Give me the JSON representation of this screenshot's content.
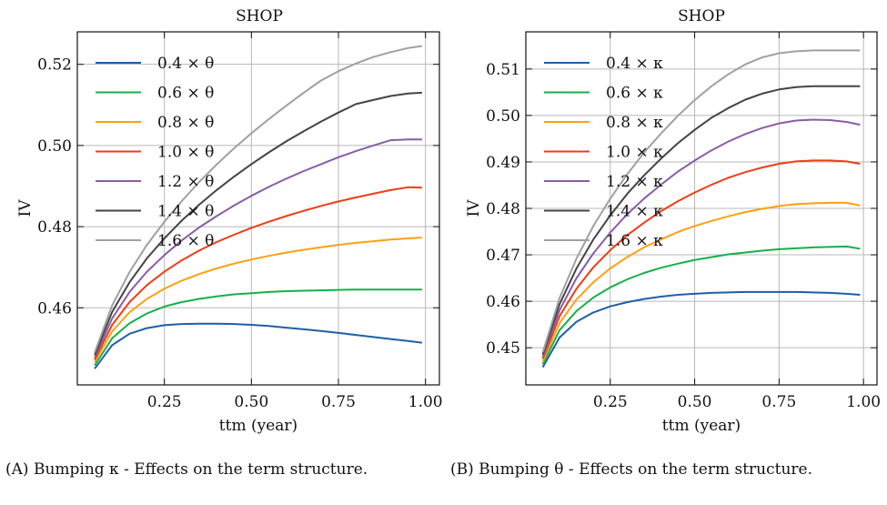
{
  "chart_data": [
    {
      "type": "line",
      "title": "SHOP",
      "xlabel": "ttm (year)",
      "ylabel": "IV",
      "xlim": [
        0.0,
        1.04
      ],
      "ylim": [
        0.441,
        0.528
      ],
      "xticks": [
        0.25,
        0.5,
        0.75,
        1.0
      ],
      "xtick_labels": [
        "0.25",
        "0.50",
        "0.75",
        "1.00"
      ],
      "yticks": [
        0.46,
        0.48,
        0.5,
        0.52
      ],
      "ytick_labels": [
        "0.46",
        "0.48",
        "0.50",
        "0.52"
      ],
      "grid": true,
      "legend": "top-left",
      "x": [
        0.05,
        0.1,
        0.15,
        0.2,
        0.25,
        0.3,
        0.35,
        0.4,
        0.45,
        0.5,
        0.55,
        0.6,
        0.65,
        0.7,
        0.75,
        0.8,
        0.85,
        0.9,
        0.95,
        0.99
      ],
      "series": [
        {
          "name": "0.4 × θ",
          "color": "#1f5fa6",
          "values": [
            0.445,
            0.4508,
            0.4536,
            0.455,
            0.4557,
            0.456,
            0.4561,
            0.4561,
            0.456,
            0.4558,
            0.4555,
            0.4551,
            0.4547,
            0.4543,
            0.4538,
            0.4533,
            0.4528,
            0.4523,
            0.4518,
            0.4514
          ]
        },
        {
          "name": "0.6 × θ",
          "color": "#16b04a",
          "values": [
            0.4458,
            0.4525,
            0.4562,
            0.4586,
            0.4603,
            0.4614,
            0.4622,
            0.4628,
            0.4633,
            0.4636,
            0.4639,
            0.4641,
            0.4642,
            0.4643,
            0.4644,
            0.4645,
            0.4645,
            0.4645,
            0.4645,
            0.4645
          ]
        },
        {
          "name": "0.8 × θ",
          "color": "#ffa010",
          "values": [
            0.4466,
            0.4542,
            0.4589,
            0.4622,
            0.4647,
            0.4667,
            0.4683,
            0.4697,
            0.4709,
            0.4719,
            0.4728,
            0.4736,
            0.4743,
            0.4749,
            0.4755,
            0.476,
            0.4764,
            0.4768,
            0.4771,
            0.4773
          ]
        },
        {
          "name": "1.0 × θ",
          "color": "#f03c14",
          "values": [
            0.4472,
            0.4558,
            0.4614,
            0.4656,
            0.4689,
            0.4717,
            0.4741,
            0.4762,
            0.478,
            0.4797,
            0.4812,
            0.4826,
            0.4839,
            0.4851,
            0.4862,
            0.4872,
            0.4881,
            0.489,
            0.4897,
            0.4896
          ]
        },
        {
          "name": "1.2 × θ",
          "color": "#8a5ca8",
          "values": [
            0.4478,
            0.4574,
            0.4639,
            0.4689,
            0.473,
            0.4766,
            0.4798,
            0.4826,
            0.4852,
            0.4876,
            0.4898,
            0.4918,
            0.4937,
            0.4954,
            0.4971,
            0.4986,
            0.5,
            0.5013,
            0.5015,
            0.5015
          ]
        },
        {
          "name": "1.4 × θ",
          "color": "#444444",
          "values": [
            0.4484,
            0.459,
            0.4663,
            0.4722,
            0.4771,
            0.4815,
            0.4854,
            0.489,
            0.4923,
            0.4954,
            0.4983,
            0.501,
            0.5035,
            0.5059,
            0.5081,
            0.5102,
            0.5112,
            0.5122,
            0.5128,
            0.513
          ]
        },
        {
          "name": "1.6 × θ",
          "color": "#a0a0a0",
          "values": [
            0.449,
            0.4606,
            0.4688,
            0.4755,
            0.4812,
            0.4863,
            0.491,
            0.4953,
            0.4993,
            0.503,
            0.5065,
            0.5098,
            0.513,
            0.516,
            0.5183,
            0.5202,
            0.5218,
            0.523,
            0.524,
            0.5245
          ]
        }
      ]
    },
    {
      "type": "line",
      "title": "SHOP",
      "xlabel": "ttm (year)",
      "ylabel": "IV",
      "xlim": [
        0.0,
        1.04
      ],
      "ylim": [
        0.442,
        0.518
      ],
      "xticks": [
        0.25,
        0.5,
        0.75,
        1.0
      ],
      "xtick_labels": [
        "0.25",
        "0.50",
        "0.75",
        "1.00"
      ],
      "yticks": [
        0.45,
        0.46,
        0.47,
        0.48,
        0.49,
        0.5,
        0.51
      ],
      "ytick_labels": [
        "0.45",
        "0.46",
        "0.47",
        "0.48",
        "0.49",
        "0.50",
        "0.51"
      ],
      "grid": true,
      "legend": "top-left",
      "x": [
        0.05,
        0.1,
        0.15,
        0.2,
        0.25,
        0.3,
        0.35,
        0.4,
        0.45,
        0.5,
        0.55,
        0.6,
        0.65,
        0.7,
        0.75,
        0.8,
        0.85,
        0.9,
        0.95,
        0.99
      ],
      "series": [
        {
          "name": "0.4 × κ",
          "color": "#1f5fa6",
          "values": [
            0.4458,
            0.4522,
            0.4556,
            0.4576,
            0.4589,
            0.4598,
            0.4605,
            0.461,
            0.4614,
            0.4616,
            0.4618,
            0.4619,
            0.462,
            0.462,
            0.462,
            0.462,
            0.4619,
            0.4618,
            0.4616,
            0.4614
          ]
        },
        {
          "name": "0.6 × κ",
          "color": "#16b04a",
          "values": [
            0.4464,
            0.4538,
            0.4579,
            0.4608,
            0.463,
            0.4647,
            0.4661,
            0.4672,
            0.4681,
            0.4689,
            0.4695,
            0.4701,
            0.4705,
            0.4709,
            0.4712,
            0.4714,
            0.4716,
            0.4717,
            0.4718,
            0.4713
          ]
        },
        {
          "name": "0.8 × κ",
          "color": "#ffa010",
          "values": [
            0.447,
            0.4553,
            0.4604,
            0.4641,
            0.4671,
            0.4695,
            0.4716,
            0.4733,
            0.4749,
            0.4762,
            0.4773,
            0.4783,
            0.4792,
            0.4799,
            0.4805,
            0.4809,
            0.4811,
            0.4812,
            0.4812,
            0.4806
          ]
        },
        {
          "name": "1.0 × κ",
          "color": "#f03c14",
          "values": [
            0.4476,
            0.4568,
            0.4627,
            0.4673,
            0.471,
            0.4742,
            0.4769,
            0.4794,
            0.4815,
            0.4834,
            0.4851,
            0.4866,
            0.4878,
            0.4888,
            0.4896,
            0.4901,
            0.4903,
            0.4903,
            0.4901,
            0.4896
          ]
        },
        {
          "name": "1.2 × κ",
          "color": "#8a5ca8",
          "values": [
            0.4481,
            0.4581,
            0.465,
            0.4703,
            0.4748,
            0.4787,
            0.4821,
            0.4851,
            0.4879,
            0.4903,
            0.4925,
            0.4944,
            0.496,
            0.4973,
            0.4983,
            0.4989,
            0.4991,
            0.499,
            0.4986,
            0.498
          ]
        },
        {
          "name": "1.4 × κ",
          "color": "#444444",
          "values": [
            0.4486,
            0.4594,
            0.4671,
            0.4733,
            0.4785,
            0.4831,
            0.4871,
            0.4907,
            0.494,
            0.4969,
            0.4995,
            0.5016,
            0.5034,
            0.5047,
            0.5056,
            0.5061,
            0.5063,
            0.5063,
            0.5063,
            0.5063
          ]
        },
        {
          "name": "1.6 × κ",
          "color": "#a0a0a0",
          "values": [
            0.449,
            0.4607,
            0.4692,
            0.4762,
            0.4821,
            0.4873,
            0.492,
            0.4961,
            0.4999,
            0.5033,
            0.5063,
            0.5089,
            0.511,
            0.5125,
            0.5134,
            0.5138,
            0.514,
            0.514,
            0.514,
            0.514
          ]
        }
      ]
    }
  ],
  "captions": {
    "a": "(A) Bumping κ - Effects on the term structure.",
    "b": "(B) Bumping θ - Effects on the term structure."
  }
}
